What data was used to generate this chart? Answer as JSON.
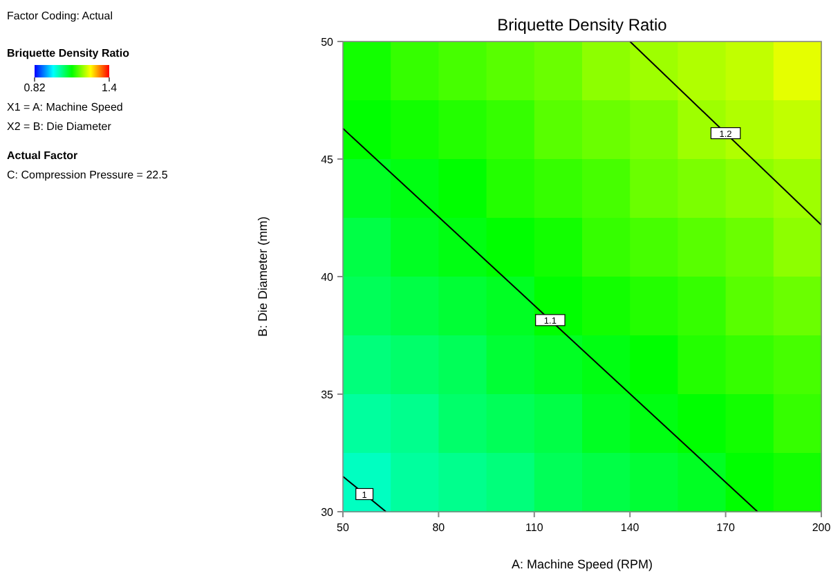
{
  "chart_data": {
    "type": "heatmap",
    "title": "Briquette Density Ratio",
    "xlabel": "A: Machine Speed (RPM)",
    "ylabel": "B: Die Diameter (mm)",
    "clabel": "Briquette Density Ratio",
    "clim": [
      0.82,
      1.4
    ],
    "cticks": [
      0.82,
      1.4
    ],
    "annotations": [
      "Factor Coding: Actual",
      "X1 = A: Machine Speed",
      "X2 = B: Die Diameter",
      "Actual Factor",
      "C: Compression Pressure = 22.5"
    ],
    "xlim": [
      50,
      200
    ],
    "xticks": [
      50,
      80,
      110,
      140,
      170,
      200
    ],
    "ylim": [
      30,
      50
    ],
    "yticks": [
      30,
      35,
      40,
      45,
      50
    ],
    "x": [
      57.5,
      72.5,
      87.5,
      102.5,
      117.5,
      132.5,
      147.5,
      162.5,
      177.5,
      192.5
    ],
    "y": [
      48.75,
      46.25,
      43.75,
      41.25,
      38.75,
      36.25,
      33.75,
      31.25
    ],
    "cells": [
      [
        1.12,
        1.14,
        1.15,
        1.16,
        1.17,
        1.19,
        1.2,
        1.21,
        1.22,
        1.24
      ],
      [
        1.11,
        1.12,
        1.13,
        1.14,
        1.16,
        1.17,
        1.18,
        1.2,
        1.21,
        1.22
      ],
      [
        1.09,
        1.1,
        1.11,
        1.13,
        1.14,
        1.15,
        1.17,
        1.18,
        1.19,
        1.2
      ],
      [
        1.07,
        1.09,
        1.1,
        1.11,
        1.12,
        1.14,
        1.15,
        1.16,
        1.17,
        1.19
      ],
      [
        1.06,
        1.07,
        1.08,
        1.09,
        1.11,
        1.12,
        1.13,
        1.14,
        1.16,
        1.17
      ],
      [
        1.04,
        1.05,
        1.06,
        1.08,
        1.09,
        1.1,
        1.11,
        1.13,
        1.14,
        1.15
      ],
      [
        1.02,
        1.03,
        1.05,
        1.06,
        1.07,
        1.09,
        1.1,
        1.11,
        1.12,
        1.14
      ],
      [
        1.0,
        1.02,
        1.03,
        1.04,
        1.06,
        1.07,
        1.08,
        1.09,
        1.11,
        1.12
      ]
    ],
    "series": [
      {
        "type": "line",
        "name": "1",
        "color": "#000000",
        "x": [
          50,
          63.5
        ],
        "values": [
          31.5,
          30
        ]
      },
      {
        "type": "line",
        "name": "1.1",
        "color": "#000000",
        "x": [
          50,
          180
        ],
        "values": [
          46.3,
          30
        ]
      },
      {
        "type": "line",
        "name": "1.2",
        "color": "#000000",
        "x": [
          140,
          200
        ],
        "values": [
          50,
          42.2
        ]
      }
    ]
  }
}
